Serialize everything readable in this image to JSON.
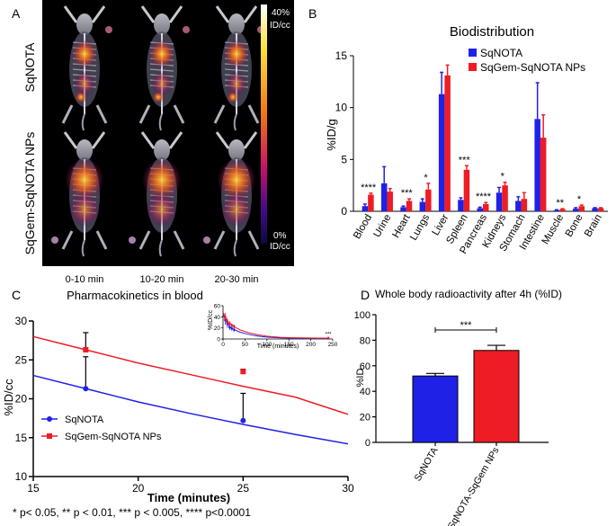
{
  "panel_labels": [
    "A",
    "B",
    "C",
    "D"
  ],
  "panel_a": {
    "row_labels": [
      "SqNOTA",
      "SqGem-SqNOTA NPs"
    ],
    "time_labels": [
      "0-10 min",
      "10-20 min",
      "20-30 min"
    ],
    "scale_top": [
      "40%",
      "ID/cc"
    ],
    "scale_bottom": [
      "0%",
      "ID/cc"
    ]
  },
  "colors": {
    "sqnota": "#1f22e6",
    "sqgem": "#ee1c24"
  },
  "chart_data": [
    {
      "id": "B",
      "type": "bar",
      "title": "Biodistribution",
      "ylabel": "%ID/g",
      "xlabel": "",
      "ylim": [
        0,
        15
      ],
      "yticks": [
        "0",
        "5",
        "10",
        "15"
      ],
      "categories": [
        "Blood",
        "Urine",
        "Heart",
        "Lungs",
        "Liver",
        "Spleen",
        "Pancreas",
        "Kidneys",
        "Stomach",
        "Intestine",
        "Muscle",
        "Bone",
        "Brain"
      ],
      "series": [
        {
          "name": "SqNOTA",
          "values": [
            0.5,
            2.7,
            0.4,
            0.9,
            11.3,
            1.1,
            0.3,
            1.8,
            1.0,
            8.9,
            0.1,
            0.25,
            0.3
          ],
          "errors": [
            0.2,
            1.6,
            0.1,
            0.3,
            2.1,
            0.2,
            0.1,
            0.5,
            0.4,
            3.5,
            0.05,
            0.1,
            0.05
          ]
        },
        {
          "name": "SqGem-SqNOTA NPs",
          "values": [
            1.6,
            1.9,
            1.0,
            2.1,
            13.1,
            4.0,
            0.7,
            2.5,
            1.2,
            7.1,
            0.2,
            0.5,
            0.3
          ],
          "errors": [
            0.15,
            0.3,
            0.2,
            0.6,
            1.0,
            0.4,
            0.15,
            0.3,
            0.6,
            2.2,
            0.05,
            0.1,
            0.05
          ]
        }
      ],
      "significance": [
        "****",
        "",
        "***",
        "*",
        "",
        "***",
        "****",
        "*",
        "",
        "",
        "**",
        "*",
        ""
      ],
      "legend_position": "top-right"
    },
    {
      "id": "C",
      "type": "line",
      "title": "Pharmacokinetics in blood",
      "xlabel": "Time (minutes)",
      "ylabel": "%ID/cc",
      "xlim": [
        15,
        30
      ],
      "ylim": [
        10,
        30
      ],
      "xticks": [
        "15",
        "20",
        "25",
        "30"
      ],
      "yticks": [
        "10",
        "15",
        "20",
        "25",
        "30"
      ],
      "series": [
        {
          "name": "SqNOTA",
          "fit_x": [
            15,
            17.5,
            20,
            22.5,
            25,
            27.5,
            30
          ],
          "fit_y": [
            23.0,
            21.3,
            19.6,
            18.1,
            16.7,
            15.4,
            14.2
          ],
          "points": [
            {
              "x": 17.5,
              "y": 21.3,
              "err": 4.1
            },
            {
              "x": 25,
              "y": 17.2,
              "err": 3.5
            }
          ]
        },
        {
          "name": "SqGem-SqNOTA NPs",
          "fit_x": [
            15,
            17.5,
            20,
            22.5,
            25,
            27.5,
            30
          ],
          "fit_y": [
            28.0,
            26.3,
            24.6,
            23.1,
            21.6,
            20.2,
            18.0
          ],
          "points": [
            {
              "x": 17.5,
              "y": 26.3,
              "err": 2.2
            },
            {
              "x": 25,
              "y": 23.5,
              "err": 0.3
            }
          ]
        }
      ],
      "legend_position": "bottom-left",
      "inset": {
        "xlabel": "Time (minutes)",
        "ylabel": "%ID/cc",
        "xlim": [
          0,
          250
        ],
        "ylim": [
          0,
          60
        ],
        "xticks": [
          "0",
          "50",
          "100",
          "150",
          "200",
          "250"
        ],
        "yticks": [
          "0",
          "20",
          "40",
          "60"
        ],
        "annotation": "***",
        "series": [
          {
            "name": "SqNOTA",
            "x": [
              0,
              5,
              10,
              15,
              20,
              25,
              40,
              60,
              80,
              100,
              130,
              160,
              200,
              240
            ],
            "y": [
              45,
              35,
              27,
              23,
              19,
              17,
              12,
              8,
              5,
              3.5,
              2,
              1.5,
              1.2,
              1
            ]
          },
          {
            "name": "SqGem-SqNOTA NPs",
            "x": [
              0,
              5,
              10,
              15,
              20,
              25,
              40,
              60,
              80,
              100,
              130,
              160,
              200,
              240
            ],
            "y": [
              48,
              40,
              32,
              28,
              24,
              22,
              16,
              11,
              7.5,
              5,
              3,
              2.2,
              1.8,
              1.5
            ]
          }
        ],
        "points": [
          {
            "series": 0,
            "x": 5,
            "y": 34,
            "err": 8
          },
          {
            "series": 0,
            "x": 10,
            "y": 27,
            "err": 7
          },
          {
            "series": 0,
            "x": 15,
            "y": 21,
            "err": 5
          },
          {
            "series": 0,
            "x": 20,
            "y": 19,
            "err": 4
          },
          {
            "series": 0,
            "x": 25,
            "y": 17,
            "err": 4
          },
          {
            "series": 0,
            "x": 240,
            "y": 1,
            "err": 0.5
          },
          {
            "series": 1,
            "x": 5,
            "y": 40,
            "err": 7
          },
          {
            "series": 1,
            "x": 10,
            "y": 32,
            "err": 6
          },
          {
            "series": 1,
            "x": 15,
            "y": 28,
            "err": 4
          },
          {
            "series": 1,
            "x": 20,
            "y": 25,
            "err": 3
          },
          {
            "series": 1,
            "x": 25,
            "y": 23,
            "err": 3
          },
          {
            "series": 1,
            "x": 240,
            "y": 2,
            "err": 0.5
          }
        ]
      }
    },
    {
      "id": "D",
      "type": "bar",
      "title": "Whole body radioactivity after 4h (%ID)",
      "ylabel": "%ID",
      "xlabel": "",
      "ylim": [
        0,
        100
      ],
      "yticks": [
        "0",
        "20",
        "40",
        "60",
        "80",
        "100"
      ],
      "categories": [
        "SqNOTA",
        "SqNOTA-SqGem NPs"
      ],
      "values": [
        52,
        72
      ],
      "errors": [
        2,
        4
      ],
      "bar_colors": [
        "#1f22e6",
        "#ee1c24"
      ],
      "significance": "***"
    }
  ],
  "footnote": "* p< 0.05, ** p < 0.01, *** p < 0.005, **** p<0.0001"
}
